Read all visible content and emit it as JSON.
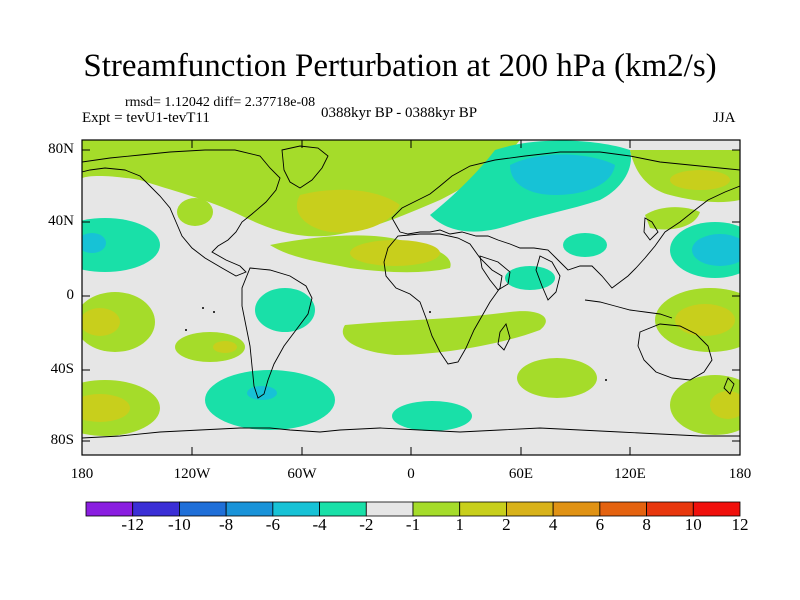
{
  "title": "Streamfunction Perturbation at 200 hPa (km2/s)",
  "stats": "rmsd= 1.12042 diff= 2.37718e-08",
  "experiment": "Expt = tevU1-tevT11",
  "period": "0388kyr BP - 0388kyr BP",
  "season": "JJA",
  "lat_labels": [
    "80N",
    "40N",
    "0",
    "40S",
    "80S"
  ],
  "lon_labels": [
    "180",
    "120W",
    "60W",
    "0",
    "60E",
    "120E",
    "180"
  ],
  "colorbar": {
    "labels": [
      "-12",
      "-10",
      "-8",
      "-6",
      "-4",
      "-2",
      "-1",
      "1",
      "2",
      "4",
      "6",
      "8",
      "10",
      "12"
    ],
    "colors": [
      "#8a1ee0",
      "#3b2fd6",
      "#1f6fd8",
      "#1993d9",
      "#17c2d6",
      "#19e0a8",
      "#e6e6e6",
      "#a5dc2a",
      "#c8cf1c",
      "#d8b21a",
      "#e09214",
      "#e4620f",
      "#e8370d",
      "#f0100c"
    ]
  },
  "palette": {
    "neutral": "#e6e6e6",
    "pos1": "#a5dc2a",
    "pos2": "#c8cf1c",
    "pos3": "#d8b21a",
    "neg1": "#19e0a8",
    "neg2": "#17c2d6"
  }
}
